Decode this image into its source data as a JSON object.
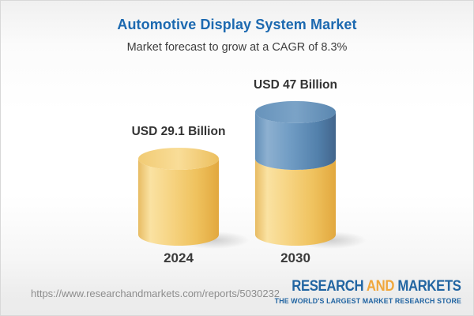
{
  "header": {
    "title": "Automotive Display System Market",
    "subtitle": "Market forecast to grow at a CAGR of 8.3%"
  },
  "chart_data": {
    "type": "bar",
    "style": "3d-cylinder",
    "title": "Automotive Display System Market",
    "subtitle": "Market forecast to grow at a CAGR of 8.3%",
    "unit": "USD Billion",
    "cagr_percent": 8.3,
    "categories": [
      "2024",
      "2030"
    ],
    "values": [
      29.1,
      47
    ],
    "value_labels": [
      "USD 29.1 Billion",
      "USD 47 Billion"
    ],
    "axes": "none",
    "grid": false,
    "legend": "none",
    "bars": [
      {
        "category": "2024",
        "total": 29.1,
        "label": "USD 29.1 Billion",
        "segments": [
          {
            "name": "base",
            "value": 29.1
          }
        ]
      },
      {
        "category": "2030",
        "total": 47,
        "label": "USD 47 Billion",
        "segments": [
          {
            "name": "base",
            "value": 29.1
          },
          {
            "name": "growth",
            "value": 17.9
          }
        ]
      }
    ],
    "colors": {
      "base": "#f3cc73",
      "growth": "#6493bc"
    }
  },
  "footer": {
    "url": "https://www.researchandmarkets.com/reports/5030232",
    "logo": {
      "word1": "RESEARCH ",
      "word2": "AND",
      "word3": " MARKETS",
      "tagline": "THE WORLD'S LARGEST MARKET RESEARCH STORE"
    }
  },
  "colors": {
    "title_blue": "#1c69b0",
    "text_dark": "#3e3e3e",
    "bar_yellow": "#f3cc73",
    "bar_blue": "#6493bc",
    "logo_blue": "#2265a2",
    "logo_gold": "#f0a73c",
    "url_gray": "#8d8d8d"
  }
}
